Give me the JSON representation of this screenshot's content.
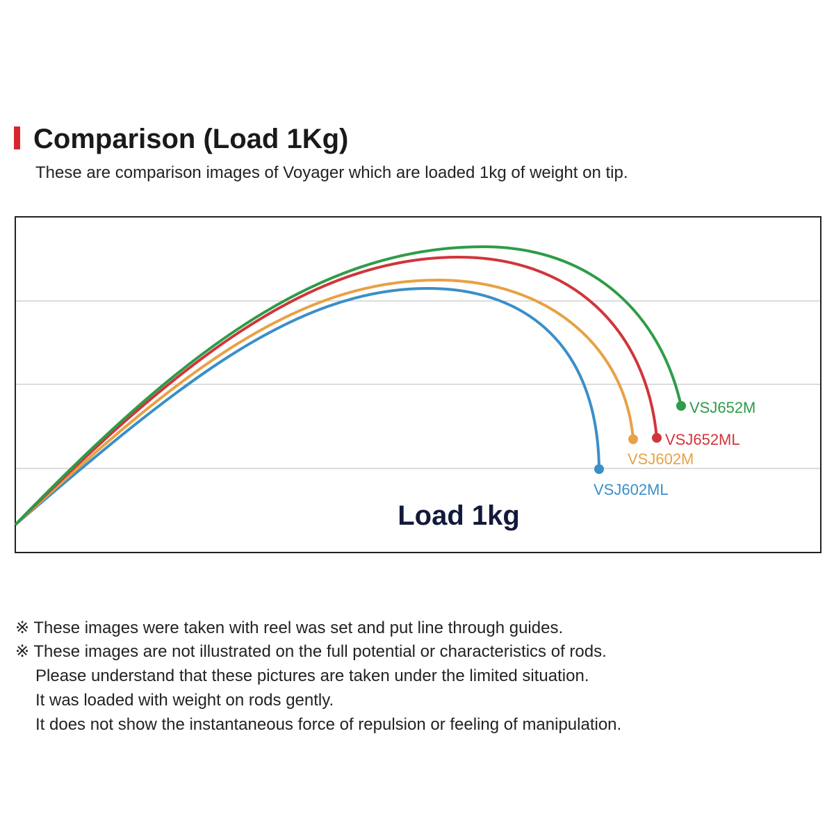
{
  "header": {
    "title": "Comparison (Load 1Kg)",
    "subtitle": "These are comparison images of Voyager which are loaded 1kg of weight on tip."
  },
  "diagram": {
    "label": "Load 1kg",
    "rods": [
      "VSJ652M",
      "VSJ652ML",
      "VSJ602M",
      "VSJ602ML"
    ]
  },
  "notes": [
    "※ These images were taken with reel was set and put line through guides.",
    "※ These images are not illustrated on the full potential or characteristics of rods.",
    "Please understand that these pictures are taken under the limited situation.",
    "It was loaded with weight on rods gently.",
    "It does not show the instantaneous force of repulsion or feeling of manipulation."
  ]
}
